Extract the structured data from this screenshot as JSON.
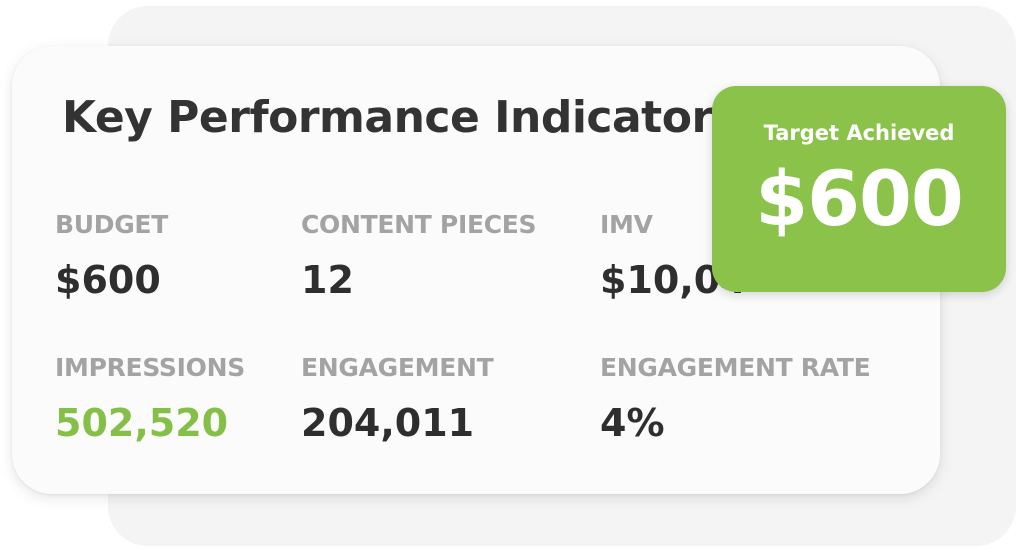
{
  "title": "Key Performance Indicators",
  "kpis": [
    {
      "label": "BUDGET",
      "value": "$600"
    },
    {
      "label": "CONTENT PIECES",
      "value": "12"
    },
    {
      "label": "IMV",
      "value": "$10,04"
    },
    {
      "label": "IMPRESSIONS",
      "value": "502,520"
    },
    {
      "label": "ENGAGEMENT",
      "value": "204,011"
    },
    {
      "label": "ENGAGEMENT RATE",
      "value": "4%"
    }
  ],
  "target": {
    "label": "Target Achieved",
    "value": "$600"
  },
  "colors": {
    "accent_green": "#8bc34a",
    "highlight_value_green": "#86bf48",
    "label_gray": "#a3a3a3",
    "value_dark": "#2e2e2e"
  }
}
